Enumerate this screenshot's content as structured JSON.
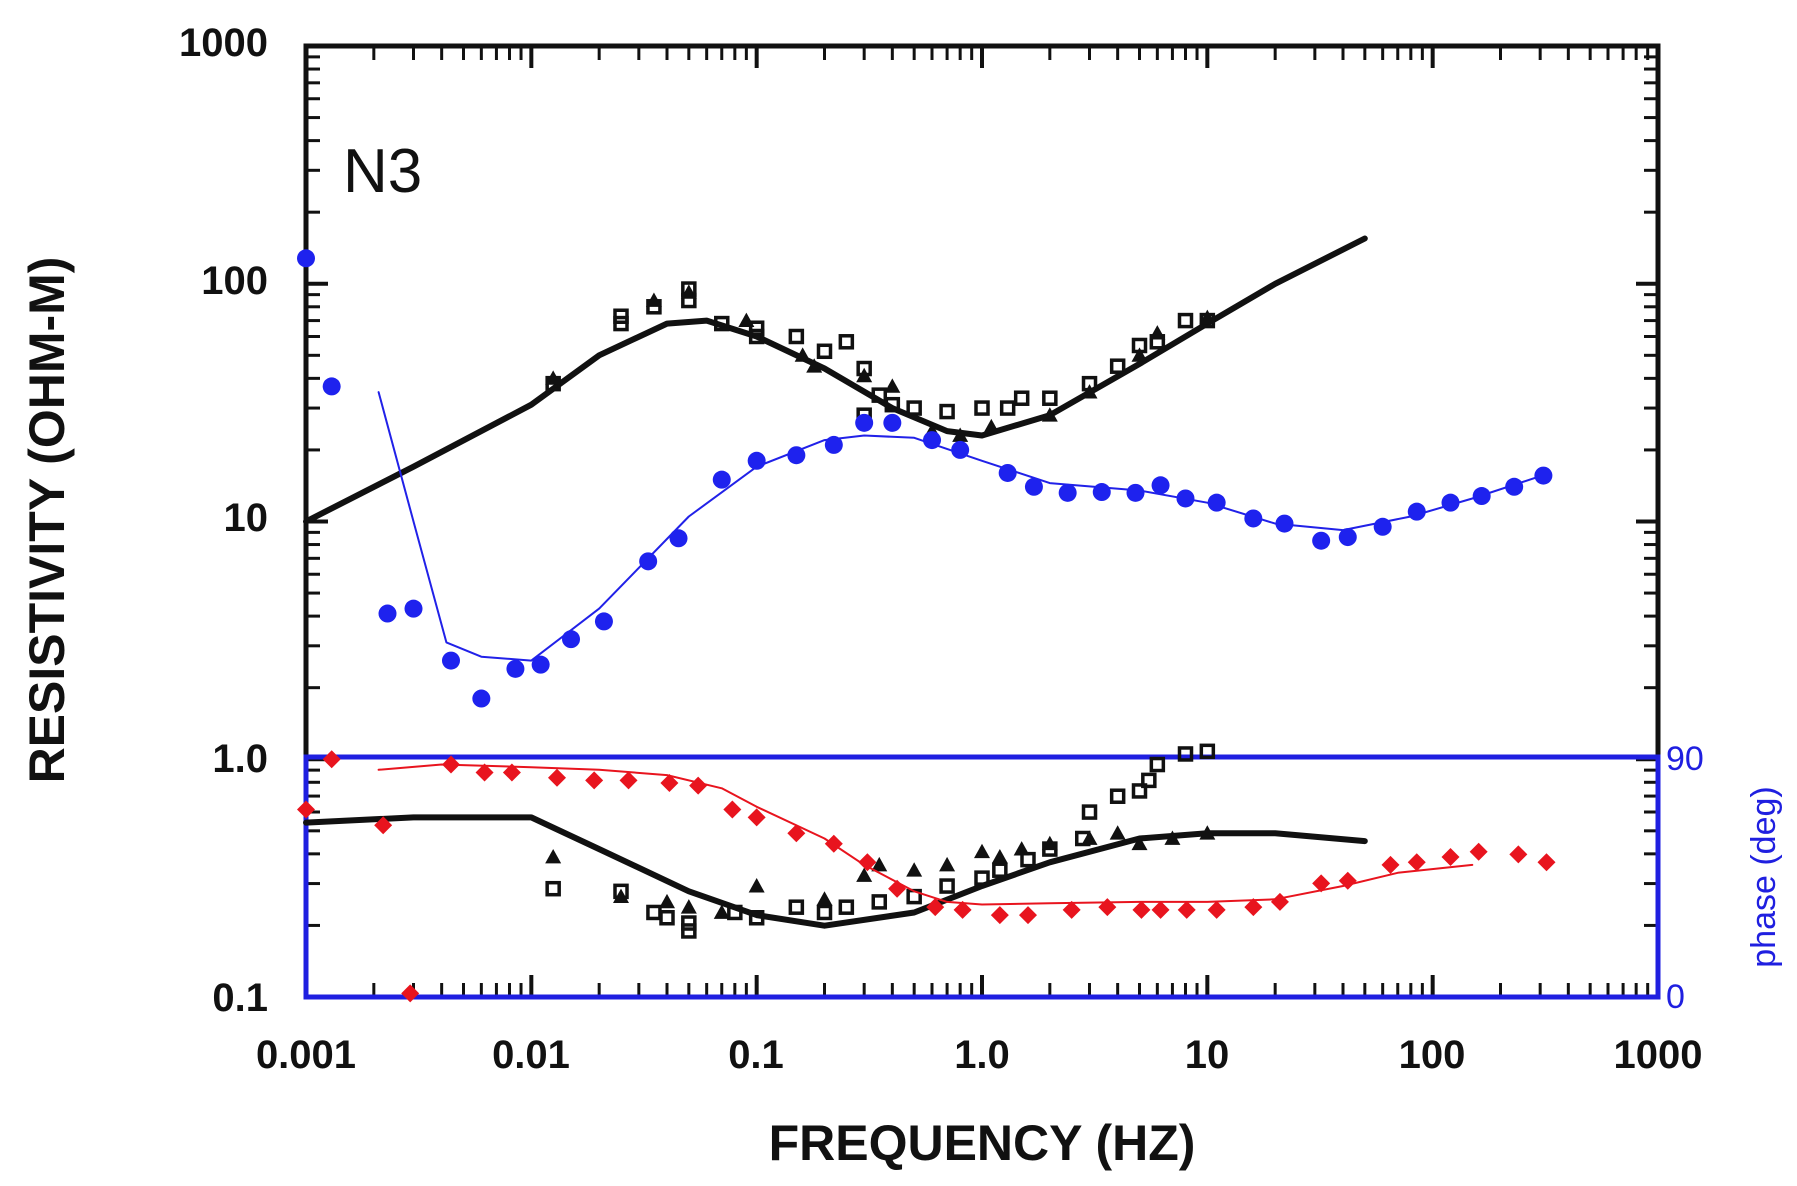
{
  "chart_data": {
    "type": "scatter",
    "panel_label": "N3",
    "xlabel": "FREQUENCY (HZ)",
    "ylabel": "RESISTIVITY (OHM-M)",
    "xscale": "log",
    "yscale": "log",
    "xlim": [
      0.001,
      1000
    ],
    "ylim": [
      0.1,
      1000
    ],
    "x_tick_labels": [
      "0.001",
      "0.01",
      "0.1",
      "1.0",
      "10",
      "100",
      "1000"
    ],
    "y_tick_labels": [
      "0.1",
      "1.0",
      "10",
      "100",
      "1000"
    ],
    "phase_axis": {
      "label": "phase (deg)",
      "range": [
        0,
        90
      ],
      "tick_labels": [
        "0",
        "90"
      ],
      "color": "#1f1fe0",
      "spans_resistivity": [
        0.1,
        1.0
      ]
    },
    "series": [
      {
        "name": "resistivity model (black)",
        "kind": "line",
        "axis": "resistivity",
        "color": "#111111",
        "points": [
          [
            0.001,
            10
          ],
          [
            0.003,
            17
          ],
          [
            0.01,
            31
          ],
          [
            0.02,
            50
          ],
          [
            0.04,
            68
          ],
          [
            0.06,
            70
          ],
          [
            0.1,
            60
          ],
          [
            0.2,
            44
          ],
          [
            0.4,
            30
          ],
          [
            0.7,
            24
          ],
          [
            1.0,
            23
          ],
          [
            2,
            28
          ],
          [
            5,
            46
          ],
          [
            10,
            68
          ],
          [
            20,
            100
          ],
          [
            50,
            155
          ]
        ]
      },
      {
        "name": "resistivity data (black squares)",
        "kind": "square",
        "axis": "resistivity",
        "color": "#111111",
        "points": [
          [
            0.0125,
            38
          ],
          [
            0.025,
            73
          ],
          [
            0.025,
            68
          ],
          [
            0.035,
            80
          ],
          [
            0.05,
            85
          ],
          [
            0.05,
            95
          ],
          [
            0.07,
            68
          ],
          [
            0.1,
            65
          ],
          [
            0.1,
            60
          ],
          [
            0.15,
            60
          ],
          [
            0.2,
            52
          ],
          [
            0.25,
            57
          ],
          [
            0.3,
            44
          ],
          [
            0.35,
            34
          ],
          [
            0.3,
            28
          ],
          [
            0.4,
            31
          ],
          [
            0.5,
            30
          ],
          [
            0.7,
            29
          ],
          [
            1.0,
            30
          ],
          [
            1.3,
            30
          ],
          [
            1.5,
            33
          ],
          [
            2,
            33
          ],
          [
            3,
            38
          ],
          [
            4,
            45
          ],
          [
            5,
            55
          ],
          [
            6,
            57
          ],
          [
            8,
            70
          ],
          [
            10,
            70
          ]
        ]
      },
      {
        "name": "resistivity data (black triangles)",
        "kind": "triangle",
        "axis": "resistivity",
        "color": "#111111",
        "points": [
          [
            0.0125,
            40
          ],
          [
            0.035,
            85
          ],
          [
            0.05,
            92
          ],
          [
            0.09,
            70
          ],
          [
            0.16,
            50
          ],
          [
            0.18,
            45
          ],
          [
            0.3,
            41
          ],
          [
            0.4,
            37
          ],
          [
            0.6,
            24
          ],
          [
            0.8,
            23
          ],
          [
            1.1,
            25
          ],
          [
            2,
            28
          ],
          [
            3,
            35
          ],
          [
            5,
            50
          ],
          [
            6,
            62
          ],
          [
            10,
            72
          ]
        ]
      },
      {
        "name": "phase model (black)",
        "kind": "line",
        "axis": "phase",
        "color": "#111111",
        "points": [
          [
            0.001,
            66
          ],
          [
            0.003,
            68
          ],
          [
            0.01,
            68
          ],
          [
            0.02,
            56
          ],
          [
            0.05,
            40
          ],
          [
            0.1,
            31
          ],
          [
            0.2,
            27
          ],
          [
            0.5,
            32
          ],
          [
            1.0,
            42
          ],
          [
            2,
            51
          ],
          [
            5,
            60
          ],
          [
            10,
            62
          ],
          [
            20,
            62
          ],
          [
            50,
            59
          ]
        ]
      },
      {
        "name": "phase data (black squares)",
        "kind": "square",
        "axis": "phase",
        "color": "#111111",
        "points": [
          [
            0.0125,
            41
          ],
          [
            0.025,
            40
          ],
          [
            0.035,
            32
          ],
          [
            0.04,
            30
          ],
          [
            0.05,
            28
          ],
          [
            0.05,
            25
          ],
          [
            0.08,
            32
          ],
          [
            0.1,
            30
          ],
          [
            0.15,
            34
          ],
          [
            0.2,
            32
          ],
          [
            0.25,
            34
          ],
          [
            0.35,
            36
          ],
          [
            0.5,
            38
          ],
          [
            0.7,
            42
          ],
          [
            1.0,
            45
          ],
          [
            1.2,
            48
          ],
          [
            1.6,
            52
          ],
          [
            2,
            56
          ],
          [
            2.8,
            60
          ],
          [
            3,
            70
          ],
          [
            4,
            76
          ],
          [
            5,
            78
          ],
          [
            5.5,
            82
          ],
          [
            6,
            88
          ],
          [
            8,
            92
          ],
          [
            10,
            93
          ]
        ]
      },
      {
        "name": "phase data (black triangles)",
        "kind": "triangle",
        "axis": "phase",
        "color": "#111111",
        "points": [
          [
            0.0125,
            53
          ],
          [
            0.025,
            38
          ],
          [
            0.04,
            36
          ],
          [
            0.05,
            34
          ],
          [
            0.07,
            32
          ],
          [
            0.1,
            42
          ],
          [
            0.2,
            37
          ],
          [
            0.3,
            46
          ],
          [
            0.35,
            50
          ],
          [
            0.5,
            48
          ],
          [
            0.7,
            50
          ],
          [
            1.0,
            55
          ],
          [
            1.2,
            53
          ],
          [
            1.5,
            56
          ],
          [
            2,
            58
          ],
          [
            3,
            60
          ],
          [
            4,
            62
          ],
          [
            5,
            58
          ],
          [
            7,
            60
          ],
          [
            10,
            62
          ]
        ]
      },
      {
        "name": "blue model curve",
        "kind": "line",
        "axis": "resistivity",
        "color": "#2121e8",
        "points": [
          [
            0.0021,
            35
          ],
          [
            0.003,
            10
          ],
          [
            0.0042,
            3.1
          ],
          [
            0.006,
            2.7
          ],
          [
            0.01,
            2.6
          ],
          [
            0.02,
            4.3
          ],
          [
            0.05,
            10.5
          ],
          [
            0.1,
            17
          ],
          [
            0.2,
            22
          ],
          [
            0.3,
            23
          ],
          [
            0.5,
            22.5
          ],
          [
            1.0,
            18
          ],
          [
            2,
            14.5
          ],
          [
            5,
            13.5
          ],
          [
            10,
            12
          ],
          [
            20,
            9.8
          ],
          [
            40,
            9.2
          ],
          [
            80,
            10.5
          ],
          [
            150,
            12.5
          ],
          [
            300,
            15.5
          ]
        ]
      },
      {
        "name": "blue data (filled circles)",
        "kind": "circle",
        "axis": "resistivity",
        "color": "#1e22ee",
        "points": [
          [
            0.001,
            128
          ],
          [
            0.0013,
            37
          ],
          [
            0.0023,
            4.1
          ],
          [
            0.003,
            4.3
          ],
          [
            0.0044,
            2.6
          ],
          [
            0.006,
            1.8
          ],
          [
            0.0085,
            2.4
          ],
          [
            0.011,
            2.5
          ],
          [
            0.015,
            3.2
          ],
          [
            0.021,
            3.8
          ],
          [
            0.033,
            6.8
          ],
          [
            0.045,
            8.5
          ],
          [
            0.07,
            15
          ],
          [
            0.1,
            18
          ],
          [
            0.15,
            19
          ],
          [
            0.22,
            21
          ],
          [
            0.3,
            26
          ],
          [
            0.4,
            26
          ],
          [
            0.6,
            22
          ],
          [
            0.8,
            20
          ],
          [
            1.3,
            16
          ],
          [
            1.7,
            14
          ],
          [
            2.4,
            13.2
          ],
          [
            3.4,
            13.3
          ],
          [
            4.8,
            13.2
          ],
          [
            6.2,
            14.2
          ],
          [
            8,
            12.5
          ],
          [
            11,
            12
          ],
          [
            16,
            10.3
          ],
          [
            22,
            9.8
          ],
          [
            32,
            8.3
          ],
          [
            42,
            8.6
          ],
          [
            60,
            9.5
          ],
          [
            85,
            11
          ],
          [
            120,
            12
          ],
          [
            165,
            12.8
          ],
          [
            230,
            14
          ],
          [
            310,
            15.6
          ]
        ]
      },
      {
        "name": "red model curve",
        "kind": "line",
        "axis": "phase",
        "color": "#e8141e",
        "points": [
          [
            0.0021,
            86
          ],
          [
            0.004,
            88
          ],
          [
            0.01,
            87
          ],
          [
            0.02,
            86
          ],
          [
            0.04,
            84
          ],
          [
            0.07,
            79
          ],
          [
            0.1,
            72
          ],
          [
            0.2,
            60
          ],
          [
            0.3,
            50
          ],
          [
            0.5,
            40
          ],
          [
            0.7,
            36
          ],
          [
            1.0,
            35
          ],
          [
            2,
            35.5
          ],
          [
            5,
            36
          ],
          [
            10,
            36
          ],
          [
            20,
            37
          ],
          [
            40,
            42
          ],
          [
            70,
            47
          ],
          [
            150,
            50
          ]
        ]
      },
      {
        "name": "red data (diamonds)",
        "kind": "diamond",
        "axis": "phase",
        "color": "#e8141e",
        "points": [
          [
            0.001,
            71
          ],
          [
            0.0013,
            90
          ],
          [
            0.0022,
            65
          ],
          [
            0.0029,
            1.35
          ],
          [
            0.0044,
            88
          ],
          [
            0.0062,
            85
          ],
          [
            0.0082,
            85
          ],
          [
            0.013,
            83
          ],
          [
            0.019,
            82
          ],
          [
            0.027,
            82
          ],
          [
            0.041,
            81
          ],
          [
            0.055,
            80
          ],
          [
            0.078,
            71
          ],
          [
            0.1,
            68
          ],
          [
            0.15,
            62
          ],
          [
            0.22,
            58
          ],
          [
            0.31,
            51
          ],
          [
            0.42,
            41
          ],
          [
            0.62,
            34
          ],
          [
            0.82,
            33
          ],
          [
            1.2,
            31
          ],
          [
            1.6,
            31
          ],
          [
            2.5,
            33
          ],
          [
            3.6,
            34
          ],
          [
            5.1,
            33
          ],
          [
            6.2,
            33
          ],
          [
            8.1,
            33
          ],
          [
            11,
            33
          ],
          [
            16,
            34
          ],
          [
            21,
            36
          ],
          [
            32,
            43
          ],
          [
            42,
            44
          ],
          [
            65,
            50
          ],
          [
            85,
            51
          ],
          [
            120,
            53
          ],
          [
            160,
            55
          ],
          [
            240,
            54
          ],
          [
            320,
            51
          ]
        ]
      }
    ]
  }
}
